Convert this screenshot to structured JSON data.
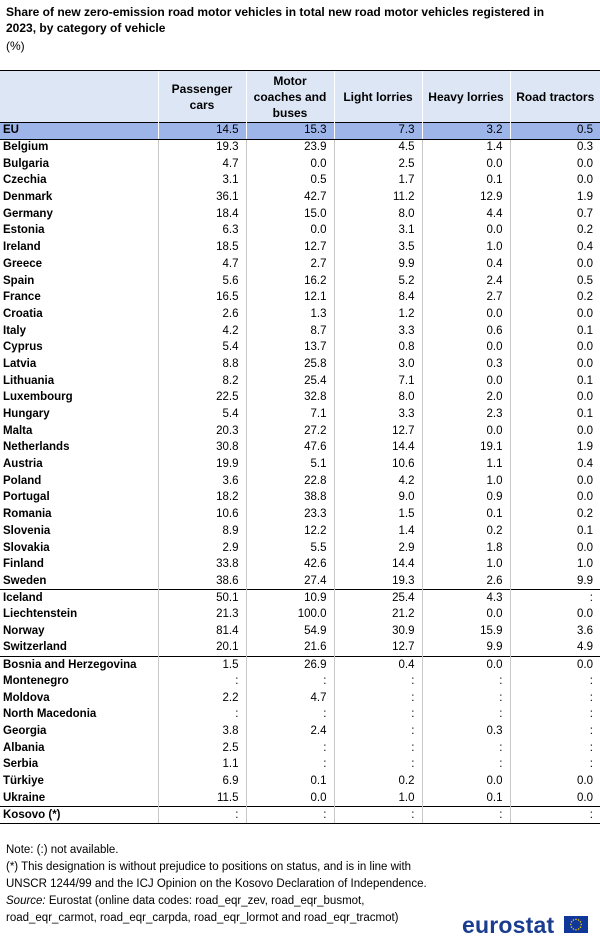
{
  "title": "Share of new zero-emission road motor vehicles in total new road motor vehicles registered in 2023, by category of vehicle",
  "unit": "(%)",
  "columns": [
    "",
    "Passenger cars",
    "Motor coaches and buses",
    "Light lorries",
    "Heavy lorries",
    "Road tractors"
  ],
  "rows": [
    {
      "name": "EU",
      "values": [
        "14.5",
        "15.3",
        "7.3",
        "3.2",
        "0.5"
      ],
      "style": "eu"
    },
    {
      "name": "Belgium",
      "values": [
        "19.3",
        "23.9",
        "4.5",
        "1.4",
        "0.3"
      ]
    },
    {
      "name": "Bulgaria",
      "values": [
        "4.7",
        "0.0",
        "2.5",
        "0.0",
        "0.0"
      ]
    },
    {
      "name": "Czechia",
      "values": [
        "3.1",
        "0.5",
        "1.7",
        "0.1",
        "0.0"
      ]
    },
    {
      "name": "Denmark",
      "values": [
        "36.1",
        "42.7",
        "11.2",
        "12.9",
        "1.9"
      ]
    },
    {
      "name": "Germany",
      "values": [
        "18.4",
        "15.0",
        "8.0",
        "4.4",
        "0.7"
      ]
    },
    {
      "name": "Estonia",
      "values": [
        "6.3",
        "0.0",
        "3.1",
        "0.0",
        "0.2"
      ]
    },
    {
      "name": "Ireland",
      "values": [
        "18.5",
        "12.7",
        "3.5",
        "1.0",
        "0.4"
      ]
    },
    {
      "name": "Greece",
      "values": [
        "4.7",
        "2.7",
        "9.9",
        "0.4",
        "0.0"
      ]
    },
    {
      "name": "Spain",
      "values": [
        "5.6",
        "16.2",
        "5.2",
        "2.4",
        "0.5"
      ]
    },
    {
      "name": "France",
      "values": [
        "16.5",
        "12.1",
        "8.4",
        "2.7",
        "0.2"
      ]
    },
    {
      "name": "Croatia",
      "values": [
        "2.6",
        "1.3",
        "1.2",
        "0.0",
        "0.0"
      ]
    },
    {
      "name": "Italy",
      "values": [
        "4.2",
        "8.7",
        "3.3",
        "0.6",
        "0.1"
      ]
    },
    {
      "name": "Cyprus",
      "values": [
        "5.4",
        "13.7",
        "0.8",
        "0.0",
        "0.0"
      ]
    },
    {
      "name": "Latvia",
      "values": [
        "8.8",
        "25.8",
        "3.0",
        "0.3",
        "0.0"
      ]
    },
    {
      "name": "Lithuania",
      "values": [
        "8.2",
        "25.4",
        "7.1",
        "0.0",
        "0.1"
      ]
    },
    {
      "name": "Luxembourg",
      "values": [
        "22.5",
        "32.8",
        "8.0",
        "2.0",
        "0.0"
      ]
    },
    {
      "name": "Hungary",
      "values": [
        "5.4",
        "7.1",
        "3.3",
        "2.3",
        "0.1"
      ]
    },
    {
      "name": "Malta",
      "values": [
        "20.3",
        "27.2",
        "12.7",
        "0.0",
        "0.0"
      ]
    },
    {
      "name": "Netherlands",
      "values": [
        "30.8",
        "47.6",
        "14.4",
        "19.1",
        "1.9"
      ]
    },
    {
      "name": "Austria",
      "values": [
        "19.9",
        "5.1",
        "10.6",
        "1.1",
        "0.4"
      ]
    },
    {
      "name": "Poland",
      "values": [
        "3.6",
        "22.8",
        "4.2",
        "1.0",
        "0.0"
      ]
    },
    {
      "name": "Portugal",
      "values": [
        "18.2",
        "38.8",
        "9.0",
        "0.9",
        "0.0"
      ]
    },
    {
      "name": "Romania",
      "values": [
        "10.6",
        "23.3",
        "1.5",
        "0.1",
        "0.2"
      ]
    },
    {
      "name": "Slovenia",
      "values": [
        "8.9",
        "12.2",
        "1.4",
        "0.2",
        "0.1"
      ]
    },
    {
      "name": "Slovakia",
      "values": [
        "2.9",
        "5.5",
        "2.9",
        "1.8",
        "0.0"
      ]
    },
    {
      "name": "Finland",
      "values": [
        "33.8",
        "42.6",
        "14.4",
        "1.0",
        "1.0"
      ]
    },
    {
      "name": "Sweden",
      "values": [
        "38.6",
        "27.4",
        "19.3",
        "2.6",
        "9.9"
      ]
    },
    {
      "name": "Iceland",
      "values": [
        "50.1",
        "10.9",
        "25.4",
        "4.3",
        ":"
      ],
      "style": "grp"
    },
    {
      "name": "Liechtenstein",
      "values": [
        "21.3",
        "100.0",
        "21.2",
        "0.0",
        "0.0"
      ]
    },
    {
      "name": "Norway",
      "values": [
        "81.4",
        "54.9",
        "30.9",
        "15.9",
        "3.6"
      ]
    },
    {
      "name": "Switzerland",
      "values": [
        "20.1",
        "21.6",
        "12.7",
        "9.9",
        "4.9"
      ]
    },
    {
      "name": "Bosnia and Herzegovina",
      "values": [
        "1.5",
        "26.9",
        "0.4",
        "0.0",
        "0.0"
      ],
      "style": "grp"
    },
    {
      "name": "Montenegro",
      "values": [
        ":",
        ":",
        ":",
        ":",
        ":"
      ]
    },
    {
      "name": "Moldova",
      "values": [
        "2.2",
        "4.7",
        ":",
        ":",
        ":"
      ]
    },
    {
      "name": "North Macedonia",
      "values": [
        ":",
        ":",
        ":",
        ":",
        ":"
      ]
    },
    {
      "name": "Georgia",
      "values": [
        "3.8",
        "2.4",
        ":",
        "0.3",
        ":"
      ]
    },
    {
      "name": "Albania",
      "values": [
        "2.5",
        ":",
        ":",
        ":",
        ":"
      ]
    },
    {
      "name": "Serbia",
      "values": [
        "1.1",
        ":",
        ":",
        ":",
        ":"
      ]
    },
    {
      "name": "Türkiye",
      "values": [
        "6.9",
        "0.1",
        "0.2",
        "0.0",
        "0.0"
      ]
    },
    {
      "name": "Ukraine",
      "values": [
        "11.5",
        "0.0",
        "1.0",
        "0.1",
        "0.0"
      ]
    },
    {
      "name": "Kosovo (*)",
      "values": [
        ":",
        ":",
        ":",
        ":",
        ":"
      ],
      "style": "grp last"
    }
  ],
  "notes": {
    "note": "Note: (:) not available.",
    "footnote": "(*) This designation is without prejudice to positions on status, and is in line with UNSCR 1244/99 and the ICJ Opinion on the Kosovo Declaration of Independence.",
    "source_label": "Source:",
    "source_text": " Eurostat (online data codes: road_eqr_zev, road_eqr_busmot, road_eqr_carmot, road_eqr_carpda, road_eqr_lormot and road_eqr_tracmot)"
  },
  "logo": {
    "text": "eurostat",
    "flag_color": "#10379a",
    "star_color": "#ffcc00"
  }
}
